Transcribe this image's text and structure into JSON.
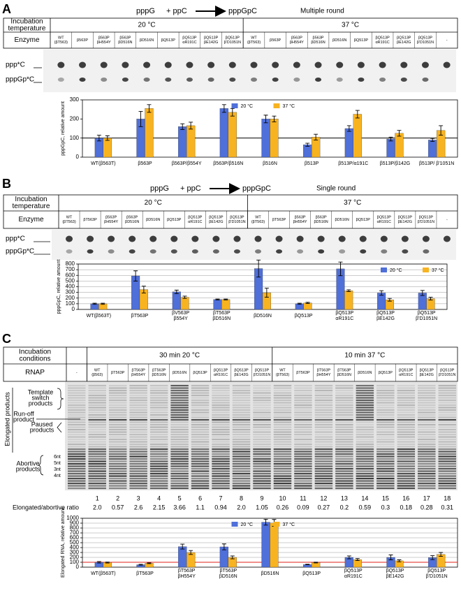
{
  "panels": [
    {
      "label": "A",
      "reaction": [
        "pppG",
        "+ ppC",
        "pppGpC"
      ],
      "mode": "Multiple round",
      "table": {
        "row_headers": [
          [
            "Incubation",
            "temperature"
          ],
          [
            "Enzyme"
          ]
        ],
        "conditions": [
          "20 °C",
          "37 °C"
        ],
        "lanes": [
          [
            "WT",
            "(βT563)"
          ],
          [
            "β563P"
          ],
          [
            "β563P",
            "βH554Y"
          ],
          [
            "β563P",
            "βD516N"
          ],
          [
            "βD516N"
          ],
          [
            "βQ513P"
          ],
          [
            "βQ513P",
            "αR191C"
          ],
          [
            "βQ513P",
            "βE142G"
          ],
          [
            "βQ513P",
            "β'D1051N"
          ],
          [
            "WT",
            "(βT563)"
          ],
          [
            "β563P"
          ],
          [
            "β563P",
            "βH554Y"
          ],
          [
            "β563P",
            "βD516N"
          ],
          [
            "βD516N"
          ],
          [
            "βQ513P"
          ],
          [
            "βQ513P",
            "αR191C"
          ],
          [
            "βQ513P",
            "βE142G"
          ],
          [
            "βQ513P",
            "β'D1051N"
          ],
          [
            "-"
          ]
        ]
      },
      "gel_labels": [
        "ppp*C",
        "pppGp*C"
      ]
    },
    {
      "label": "B",
      "reaction": [
        "pppG",
        "+ ppC",
        "pppGpC"
      ],
      "mode": "Single round",
      "table": {
        "row_headers": [
          [
            "Incubation",
            "temperature"
          ],
          [
            "Enzyme"
          ]
        ],
        "conditions": [
          "20 °C",
          "37 °C"
        ],
        "lanes": [
          [
            "WT",
            "(βT563)"
          ],
          [
            "βT563P"
          ],
          [
            "β563P",
            "βH554Y"
          ],
          [
            "β563P",
            "βD516N"
          ],
          [
            "βD516N"
          ],
          [
            "βQ513P"
          ],
          [
            "βQ513P",
            "αR191C"
          ],
          [
            "βQ513P",
            "βE142G"
          ],
          [
            "βQ513P",
            "β'D1051N"
          ],
          [
            "WT",
            "(βT563)"
          ],
          [
            "βT563P"
          ],
          [
            "β563P",
            "βH554Y"
          ],
          [
            "β563P",
            "βD516N"
          ],
          [
            "βD516N"
          ],
          [
            "βQ513P"
          ],
          [
            "βQ513P",
            "αR191C"
          ],
          [
            "βQ513P",
            "βE142G"
          ],
          [
            "βQ513P",
            "β'D1051N"
          ],
          [
            "-"
          ]
        ]
      },
      "gel_labels": [
        "ppp*C",
        "pppGp*C"
      ]
    },
    {
      "label": "C",
      "table": {
        "row_headers": [
          [
            "Incubation",
            "conditions"
          ],
          [
            "RNAP"
          ]
        ],
        "conditions": [
          "30 min 20 °C",
          "10 min 37 °C"
        ],
        "lanes": [
          [
            "-"
          ],
          [
            "WT",
            "(β563)"
          ],
          [
            "βT563P"
          ],
          [
            "βT563P",
            "βH554Y"
          ],
          [
            "βT563P",
            "βD516N"
          ],
          [
            "βD516N"
          ],
          [
            "βQ513P"
          ],
          [
            "βQ513P",
            "αR191C"
          ],
          [
            "βQ513P",
            "βE142G"
          ],
          [
            "βQ513P",
            "β'D1051N"
          ],
          [
            "WT",
            "(βT563)"
          ],
          [
            "βT563P"
          ],
          [
            "βT563P",
            "βH554Y"
          ],
          [
            "βT563P",
            "βD516N"
          ],
          [
            "βD516N"
          ],
          [
            "βQ513P"
          ],
          [
            "βQ513P",
            "αR191C"
          ],
          [
            "βQ513P",
            "βE142G"
          ],
          [
            "βQ513P",
            "β'D1051N"
          ]
        ]
      },
      "side_label": "Elongated products",
      "product_labels": [
        [
          "Template",
          "switch",
          "products"
        ],
        [
          "Run-off",
          "product"
        ],
        [
          "Paused",
          "products"
        ],
        [
          "Abortive",
          "products"
        ],
        [
          "6nt"
        ],
        [
          "5nt"
        ],
        [
          "3nt"
        ],
        [
          "4nt"
        ]
      ],
      "lane_numbers": [
        1,
        2,
        3,
        4,
        5,
        6,
        7,
        8,
        9,
        10,
        11,
        12,
        13,
        14,
        15,
        16,
        17,
        18
      ],
      "ratio_label": "Elongated/abortive ratio",
      "ratios": [
        "2.0",
        "0.57",
        "2.6",
        "2.15",
        "3.66",
        "1.1",
        "0.94",
        "2.0",
        "1.05",
        "0.26",
        "0.09",
        "0.27",
        "0.2",
        "0.59",
        "0.3",
        "0.18",
        "0.28",
        "0.31"
      ]
    }
  ],
  "chart_data": [
    {
      "type": "bar",
      "ylabel": "pppGpC, relative amount",
      "categories": [
        [
          "WT(β563T)"
        ],
        [
          "β563P"
        ],
        [
          "β563P/β554Y"
        ],
        [
          "β563P/β516N"
        ],
        [
          "β516N"
        ],
        [
          "β513P"
        ],
        [
          "β513P/α191C"
        ],
        [
          "β513P/β142G"
        ],
        [
          "β513P/ β'1051N"
        ]
      ],
      "series": [
        {
          "name": "20 °C",
          "color": "#4f6fd9",
          "values": [
            100,
            200,
            160,
            255,
            200,
            65,
            150,
            95,
            90
          ],
          "errors": [
            15,
            40,
            15,
            20,
            20,
            8,
            15,
            10,
            8
          ]
        },
        {
          "name": "37 °C",
          "color": "#f8b320",
          "values": [
            100,
            255,
            165,
            235,
            200,
            105,
            225,
            125,
            140
          ],
          "errors": [
            12,
            20,
            18,
            20,
            15,
            15,
            20,
            15,
            25
          ]
        }
      ],
      "ylim": [
        0,
        300
      ],
      "yticks": [
        0,
        100,
        200,
        300
      ],
      "grid": false,
      "legend": "upper center",
      "reference_line": {
        "value": 100,
        "color": "#000000"
      }
    },
    {
      "type": "bar",
      "ylabel": "pppGpC, relative amount",
      "categories": [
        [
          "WT(β563T)"
        ],
        [
          "βT563P"
        ],
        [
          "βV563P",
          "β554Y"
        ],
        [
          "βT563P",
          "βD516N"
        ],
        [
          "βD516N"
        ],
        [
          "βQ513P"
        ],
        [
          "βQ513P",
          "αR191C"
        ],
        [
          "βQ513P",
          "βE142G"
        ],
        [
          "βQ513P",
          "β'D1051N"
        ]
      ],
      "series": [
        {
          "name": "20 °C",
          "color": "#4f6fd9",
          "values": [
            100,
            590,
            310,
            175,
            720,
            100,
            715,
            290,
            290
          ],
          "errors": [
            10,
            90,
            30,
            8,
            150,
            10,
            120,
            40,
            45
          ]
        },
        {
          "name": "37 °C",
          "color": "#f8b320",
          "values": [
            100,
            350,
            215,
            175,
            295,
            115,
            330,
            170,
            190
          ],
          "errors": [
            10,
            60,
            20,
            8,
            80,
            10,
            15,
            25,
            25
          ]
        }
      ],
      "ylim": [
        0,
        800
      ],
      "yticks": [
        0,
        100,
        200,
        300,
        400,
        500,
        600,
        700,
        800
      ],
      "grid": true,
      "legend": "upper right"
    },
    {
      "type": "bar",
      "ylabel": "Elongated RNA, relative amount",
      "categories": [
        [
          "WT(β563T)"
        ],
        [
          "βT563P"
        ],
        [
          "βT563P",
          "βH554Y"
        ],
        [
          "βT563P",
          "βD516N"
        ],
        [
          "βD516N"
        ],
        [
          "βQ513P"
        ],
        [
          "βQ513P",
          "αR191C"
        ],
        [
          "βQ513P",
          "βE142G"
        ],
        [
          "βQ513P",
          "β'D1051N"
        ]
      ],
      "series": [
        {
          "name": "20 °C",
          "color": "#4f6fd9",
          "values": [
            100,
            50,
            420,
            415,
            920,
            55,
            200,
            200,
            195
          ],
          "errors": [
            15,
            8,
            50,
            60,
            60,
            5,
            30,
            50,
            40
          ]
        },
        {
          "name": "37 °C",
          "color": "#f8b320",
          "values": [
            95,
            80,
            300,
            200,
            905,
            95,
            155,
            130,
            260
          ],
          "errors": [
            10,
            8,
            40,
            30,
            70,
            8,
            20,
            20,
            40
          ]
        }
      ],
      "ylim": [
        0,
        1000
      ],
      "yticks": [
        0,
        100,
        200,
        300,
        400,
        500,
        600,
        700,
        800,
        900,
        1000
      ],
      "grid": true,
      "legend": "upper center",
      "reference_line": {
        "value": 100,
        "color": "#e0201b"
      }
    }
  ]
}
